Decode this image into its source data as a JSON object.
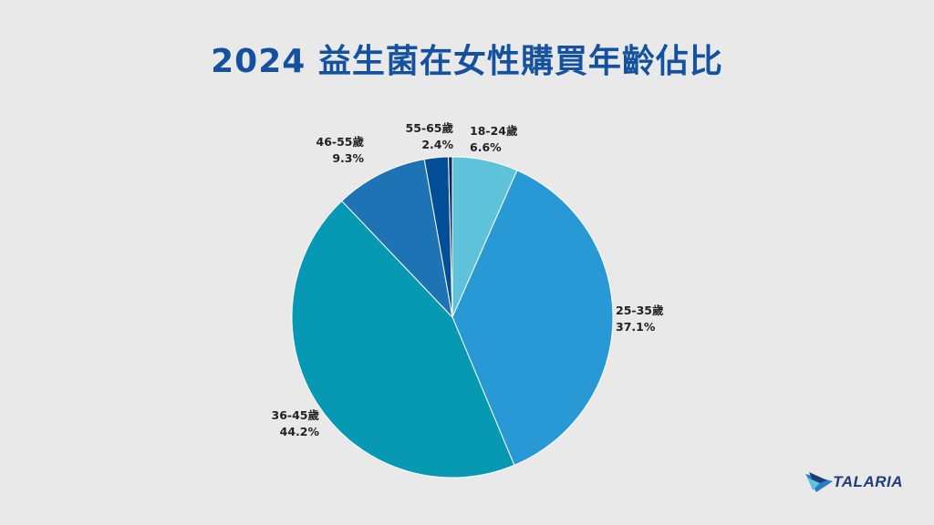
{
  "title": "2024 益生菌在女性購買年齡佔比",
  "brand": {
    "name": "TALARIA"
  },
  "chart_data": {
    "type": "pie",
    "title": "2024 益生菌在女性購買年齡佔比",
    "slices": [
      {
        "label": "18-24歲",
        "value": 6.6,
        "display": "6.6%",
        "color": "#5ec3da"
      },
      {
        "label": "25-35歲",
        "value": 37.1,
        "display": "37.1%",
        "color": "#2899d4"
      },
      {
        "label": "36-45歲",
        "value": 44.2,
        "display": "44.2%",
        "color": "#0798b4"
      },
      {
        "label": "46-55歲",
        "value": 9.3,
        "display": "9.3%",
        "color": "#1e73b5"
      },
      {
        "label": "55-65歲",
        "value": 2.4,
        "display": "2.4%",
        "color": "#044e98"
      },
      {
        "label": "",
        "value": 0.4,
        "display": "",
        "color": "#0d2b5a"
      }
    ],
    "start_angle": "12 o'clock",
    "direction": "clockwise",
    "legend": "none (direct labels)"
  }
}
